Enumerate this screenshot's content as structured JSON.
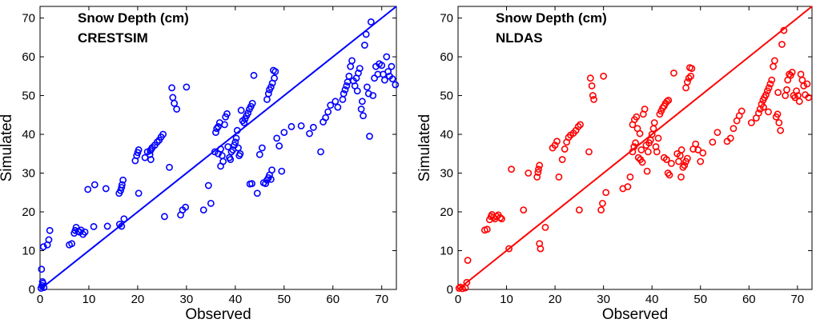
{
  "chart_data": [
    {
      "type": "scatter",
      "title": "Snow Depth (cm)",
      "subtitle": "CRESTSIM",
      "xlabel": "Observed",
      "ylabel": "Simulated",
      "xlim": [
        0,
        73
      ],
      "ylim": [
        0,
        73
      ],
      "xticks": [
        0,
        10,
        20,
        30,
        40,
        50,
        60,
        70
      ],
      "yticks": [
        0,
        10,
        20,
        30,
        40,
        50,
        60,
        70
      ],
      "grid": false,
      "color": "#0000ff",
      "marker": "open-circle",
      "reference_line": {
        "from": [
          0,
          0
        ],
        "to": [
          73,
          73
        ]
      },
      "points": [
        [
          0.2,
          0.3
        ],
        [
          0.4,
          1.0
        ],
        [
          0.6,
          1.6
        ],
        [
          0.8,
          0.5
        ],
        [
          0.5,
          2.0
        ],
        [
          0.3,
          5.2
        ],
        [
          0.7,
          11.0
        ],
        [
          1.5,
          11.5
        ],
        [
          1.8,
          12.8
        ],
        [
          2.0,
          15.2
        ],
        [
          6.0,
          11.5
        ],
        [
          6.5,
          11.8
        ],
        [
          7.0,
          14.5
        ],
        [
          7.2,
          15.2
        ],
        [
          7.4,
          16.0
        ],
        [
          7.8,
          15.0
        ],
        [
          8.1,
          14.8
        ],
        [
          8.4,
          15.3
        ],
        [
          8.8,
          14.2
        ],
        [
          9.2,
          14.8
        ],
        [
          11.0,
          16.2
        ],
        [
          11.2,
          27.0
        ],
        [
          9.8,
          25.8
        ],
        [
          13.5,
          26.0
        ],
        [
          13.8,
          16.3
        ],
        [
          16.2,
          24.8
        ],
        [
          16.5,
          25.5
        ],
        [
          16.7,
          26.3
        ],
        [
          16.8,
          27.0
        ],
        [
          17.0,
          28.2
        ],
        [
          16.3,
          16.8
        ],
        [
          16.7,
          16.3
        ],
        [
          17.2,
          18.2
        ],
        [
          19.5,
          33.2
        ],
        [
          19.8,
          34.5
        ],
        [
          20.0,
          35.3
        ],
        [
          20.2,
          36.0
        ],
        [
          20.2,
          24.8
        ],
        [
          21.5,
          34.0
        ],
        [
          22.0,
          35.5
        ],
        [
          22.5,
          34.8
        ],
        [
          22.6,
          35.8
        ],
        [
          22.8,
          36.2
        ],
        [
          23.0,
          36.6
        ],
        [
          23.5,
          37.2
        ],
        [
          24.0,
          38.0
        ],
        [
          24.4,
          38.5
        ],
        [
          24.8,
          39.3
        ],
        [
          25.2,
          40.0
        ],
        [
          22.7,
          33.5
        ],
        [
          25.5,
          18.8
        ],
        [
          26.5,
          31.5
        ],
        [
          27.0,
          52.0
        ],
        [
          27.2,
          49.5
        ],
        [
          27.5,
          48.0
        ],
        [
          28.0,
          46.5
        ],
        [
          28.8,
          19.2
        ],
        [
          29.2,
          20.5
        ],
        [
          29.8,
          21.2
        ],
        [
          30.0,
          52.2
        ],
        [
          33.5,
          20.5
        ],
        [
          34.5,
          26.8
        ],
        [
          35.0,
          22.2
        ],
        [
          35.8,
          35.5
        ],
        [
          36.0,
          40.5
        ],
        [
          36.2,
          41.5
        ],
        [
          36.5,
          42.0
        ],
        [
          36.8,
          43.0
        ],
        [
          36.5,
          35.0
        ],
        [
          37.0,
          36.2
        ],
        [
          37.3,
          34.5
        ],
        [
          37.5,
          33.0
        ],
        [
          37.0,
          31.8
        ],
        [
          37.8,
          42.5
        ],
        [
          38.0,
          44.5
        ],
        [
          38.3,
          45.3
        ],
        [
          38.5,
          36.8
        ],
        [
          38.8,
          34.0
        ],
        [
          39.0,
          33.5
        ],
        [
          39.2,
          35.5
        ],
        [
          39.5,
          36.0
        ],
        [
          39.8,
          37.2
        ],
        [
          40.0,
          38.0
        ],
        [
          40.2,
          39.0
        ],
        [
          40.4,
          41.0
        ],
        [
          40.6,
          36.5
        ],
        [
          40.8,
          34.5
        ],
        [
          41.0,
          35.0
        ],
        [
          41.2,
          46.2
        ],
        [
          41.5,
          43.5
        ],
        [
          41.8,
          43.0
        ],
        [
          42.0,
          44.0
        ],
        [
          42.3,
          44.8
        ],
        [
          42.6,
          45.5
        ],
        [
          42.9,
          46.5
        ],
        [
          43.2,
          47.2
        ],
        [
          43.5,
          48.0
        ],
        [
          43.8,
          55.2
        ],
        [
          43.0,
          27.2
        ],
        [
          43.4,
          27.3
        ],
        [
          44.5,
          24.8
        ],
        [
          45.0,
          34.8
        ],
        [
          45.5,
          36.5
        ],
        [
          45.8,
          27.5
        ],
        [
          46.2,
          27.3
        ],
        [
          46.5,
          28.2
        ],
        [
          46.8,
          28.8
        ],
        [
          47.0,
          29.5
        ],
        [
          47.3,
          28.4
        ],
        [
          46.5,
          49.0
        ],
        [
          46.8,
          50.5
        ],
        [
          47.0,
          51.5
        ],
        [
          47.3,
          52.2
        ],
        [
          47.6,
          53.2
        ],
        [
          47.8,
          56.5
        ],
        [
          48.2,
          56.2
        ],
        [
          48.0,
          54.5
        ],
        [
          47.5,
          30.8
        ],
        [
          48.5,
          39.0
        ],
        [
          49.0,
          37.0
        ],
        [
          49.5,
          30.5
        ],
        [
          50.0,
          40.5
        ],
        [
          51.5,
          42.0
        ],
        [
          53.5,
          42.2
        ],
        [
          55.2,
          40.2
        ],
        [
          56.0,
          41.8
        ],
        [
          57.5,
          35.5
        ],
        [
          58.0,
          43.2
        ],
        [
          58.5,
          44.3
        ],
        [
          59.0,
          45.8
        ],
        [
          59.5,
          47.5
        ],
        [
          62.0,
          49.0
        ],
        [
          62.2,
          50.5
        ],
        [
          62.5,
          51.5
        ],
        [
          62.8,
          52.5
        ],
        [
          63.0,
          53.5
        ],
        [
          63.3,
          55.0
        ],
        [
          63.6,
          57.5
        ],
        [
          63.9,
          59.0
        ],
        [
          64.2,
          53.8
        ],
        [
          64.5,
          52.5
        ],
        [
          64.8,
          54.5
        ],
        [
          65.2,
          55.8
        ],
        [
          65.5,
          57.0
        ],
        [
          65.8,
          46.5
        ],
        [
          66.0,
          48.5
        ],
        [
          66.2,
          44.8
        ],
        [
          66.5,
          63.0
        ],
        [
          66.8,
          65.8
        ],
        [
          67.0,
          52.2
        ],
        [
          67.3,
          50.5
        ],
        [
          67.5,
          39.5
        ],
        [
          67.8,
          69.0
        ],
        [
          68.2,
          50.0
        ],
        [
          68.5,
          54.5
        ],
        [
          68.8,
          57.5
        ],
        [
          69.2,
          55.5
        ],
        [
          69.5,
          58.2
        ],
        [
          70.0,
          57.8
        ],
        [
          70.3,
          55.5
        ],
        [
          70.6,
          54.0
        ],
        [
          71.0,
          60.0
        ],
        [
          71.3,
          56.2
        ],
        [
          71.6,
          55.0
        ],
        [
          72.0,
          57.5
        ],
        [
          72.2,
          54.3
        ],
        [
          72.8,
          52.8
        ],
        [
          65.0,
          51.2
        ],
        [
          60.5,
          48.5
        ],
        [
          61.0,
          47.0
        ]
      ]
    },
    {
      "type": "scatter",
      "title": "Snow Depth (cm)",
      "subtitle": "NLDAS",
      "xlabel": "Observed",
      "ylabel": "Simulated",
      "xlim": [
        0,
        73
      ],
      "ylim": [
        0,
        73
      ],
      "xticks": [
        0,
        10,
        20,
        30,
        40,
        50,
        60,
        70
      ],
      "yticks": [
        0,
        10,
        20,
        30,
        40,
        50,
        60,
        70
      ],
      "grid": false,
      "color": "#ff0000",
      "marker": "open-circle",
      "reference_line": {
        "from": [
          0,
          0
        ],
        "to": [
          73,
          73
        ]
      },
      "points": [
        [
          0.2,
          0.3
        ],
        [
          0.5,
          0.6
        ],
        [
          0.9,
          0.2
        ],
        [
          1.5,
          0.4
        ],
        [
          1.8,
          1.8
        ],
        [
          2.0,
          7.5
        ],
        [
          5.5,
          15.3
        ],
        [
          6.0,
          15.5
        ],
        [
          6.5,
          18.0
        ],
        [
          6.8,
          18.8
        ],
        [
          7.0,
          19.3
        ],
        [
          7.3,
          18.6
        ],
        [
          7.6,
          18.2
        ],
        [
          8.0,
          18.8
        ],
        [
          8.3,
          19.2
        ],
        [
          8.7,
          18.5
        ],
        [
          9.0,
          18.2
        ],
        [
          10.5,
          10.5
        ],
        [
          11.0,
          31.0
        ],
        [
          13.5,
          20.5
        ],
        [
          14.5,
          30.0
        ],
        [
          16.3,
          29.0
        ],
        [
          16.5,
          30.2
        ],
        [
          16.6,
          31.0
        ],
        [
          16.8,
          32.0
        ],
        [
          16.8,
          11.8
        ],
        [
          17.0,
          10.5
        ],
        [
          18.0,
          16.0
        ],
        [
          19.5,
          36.5
        ],
        [
          20.0,
          37.2
        ],
        [
          20.4,
          38.2
        ],
        [
          20.8,
          29.0
        ],
        [
          21.5,
          33.5
        ],
        [
          22.0,
          36.2
        ],
        [
          22.4,
          38.0
        ],
        [
          22.8,
          39.2
        ],
        [
          23.2,
          39.8
        ],
        [
          23.8,
          40.3
        ],
        [
          24.3,
          41.0
        ],
        [
          24.8,
          42.0
        ],
        [
          25.2,
          42.5
        ],
        [
          25.0,
          20.5
        ],
        [
          27.0,
          35.5
        ],
        [
          27.3,
          54.5
        ],
        [
          27.6,
          52.5
        ],
        [
          27.8,
          50.0
        ],
        [
          28.0,
          49.0
        ],
        [
          29.5,
          20.5
        ],
        [
          29.8,
          22.2
        ],
        [
          30.0,
          55.0
        ],
        [
          30.5,
          25.0
        ],
        [
          34.0,
          26.0
        ],
        [
          35.0,
          26.5
        ],
        [
          35.5,
          29.0
        ],
        [
          36.0,
          35.5
        ],
        [
          36.3,
          36.8
        ],
        [
          36.6,
          37.8
        ],
        [
          36.0,
          42.5
        ],
        [
          36.4,
          43.8
        ],
        [
          36.8,
          44.5
        ],
        [
          37.0,
          41.5
        ],
        [
          37.5,
          40.2
        ],
        [
          37.2,
          34.0
        ],
        [
          37.6,
          33.5
        ],
        [
          38.0,
          32.8
        ],
        [
          38.2,
          45.2
        ],
        [
          38.5,
          46.5
        ],
        [
          38.8,
          37.2
        ],
        [
          39.2,
          35.5
        ],
        [
          39.4,
          37.8
        ],
        [
          39.7,
          38.5
        ],
        [
          40.0,
          40.0
        ],
        [
          40.3,
          41.5
        ],
        [
          40.5,
          43.0
        ],
        [
          40.8,
          36.8
        ],
        [
          41.0,
          35.5
        ],
        [
          41.3,
          39.0
        ],
        [
          41.6,
          45.2
        ],
        [
          41.9,
          46.0
        ],
        [
          42.2,
          46.8
        ],
        [
          42.5,
          47.3
        ],
        [
          42.8,
          48.0
        ],
        [
          43.1,
          48.5
        ],
        [
          43.4,
          48.8
        ],
        [
          42.5,
          34.0
        ],
        [
          43.0,
          33.5
        ],
        [
          43.3,
          30.0
        ],
        [
          43.6,
          29.5
        ],
        [
          44.5,
          55.8
        ],
        [
          45.2,
          35.0
        ],
        [
          45.5,
          33.0
        ],
        [
          45.8,
          34.5
        ],
        [
          46.1,
          36.0
        ],
        [
          46.4,
          31.5
        ],
        [
          46.7,
          32.0
        ],
        [
          47.0,
          33.0
        ],
        [
          47.3,
          33.8
        ],
        [
          47.0,
          52.0
        ],
        [
          47.3,
          53.5
        ],
        [
          47.6,
          54.5
        ],
        [
          47.8,
          57.2
        ],
        [
          48.2,
          57.0
        ],
        [
          48.0,
          55.0
        ],
        [
          48.5,
          36.2
        ],
        [
          49.0,
          37.5
        ],
        [
          49.5,
          36.0
        ],
        [
          50.0,
          33.0
        ],
        [
          50.5,
          35.2
        ],
        [
          52.5,
          38.0
        ],
        [
          53.5,
          40.5
        ],
        [
          55.5,
          38.2
        ],
        [
          56.2,
          39.0
        ],
        [
          56.8,
          41.5
        ],
        [
          57.5,
          43.5
        ],
        [
          58.0,
          44.8
        ],
        [
          58.5,
          46.0
        ],
        [
          62.0,
          45.5
        ],
        [
          62.3,
          46.5
        ],
        [
          62.6,
          47.8
        ],
        [
          62.9,
          48.8
        ],
        [
          63.2,
          49.5
        ],
        [
          63.5,
          50.2
        ],
        [
          63.8,
          51.2
        ],
        [
          64.1,
          52.0
        ],
        [
          64.4,
          53.0
        ],
        [
          64.7,
          54.0
        ],
        [
          65.0,
          57.5
        ],
        [
          65.3,
          59.0
        ],
        [
          65.6,
          44.5
        ],
        [
          65.9,
          45.2
        ],
        [
          66.2,
          43.0
        ],
        [
          66.5,
          41.0
        ],
        [
          66.8,
          63.2
        ],
        [
          67.2,
          66.8
        ],
        [
          67.5,
          50.0
        ],
        [
          67.8,
          51.5
        ],
        [
          68.0,
          54.0
        ],
        [
          68.3,
          55.5
        ],
        [
          68.6,
          55.2
        ],
        [
          68.9,
          56.0
        ],
        [
          69.2,
          50.0
        ],
        [
          69.5,
          49.5
        ],
        [
          69.8,
          51.2
        ],
        [
          70.1,
          50.0
        ],
        [
          70.4,
          48.5
        ],
        [
          70.7,
          55.5
        ],
        [
          71.0,
          54.0
        ],
        [
          71.3,
          52.5
        ],
        [
          71.6,
          50.2
        ],
        [
          72.0,
          53.0
        ],
        [
          72.3,
          49.5
        ],
        [
          61.5,
          44.2
        ],
        [
          60.5,
          43.0
        ],
        [
          64.0,
          45.8
        ],
        [
          66.0,
          50.8
        ],
        [
          63.0,
          47.0
        ],
        [
          46.0,
          29.0
        ],
        [
          44.0,
          32.5
        ],
        [
          39.0,
          30.5
        ],
        [
          37.8,
          36.0
        ]
      ]
    }
  ]
}
